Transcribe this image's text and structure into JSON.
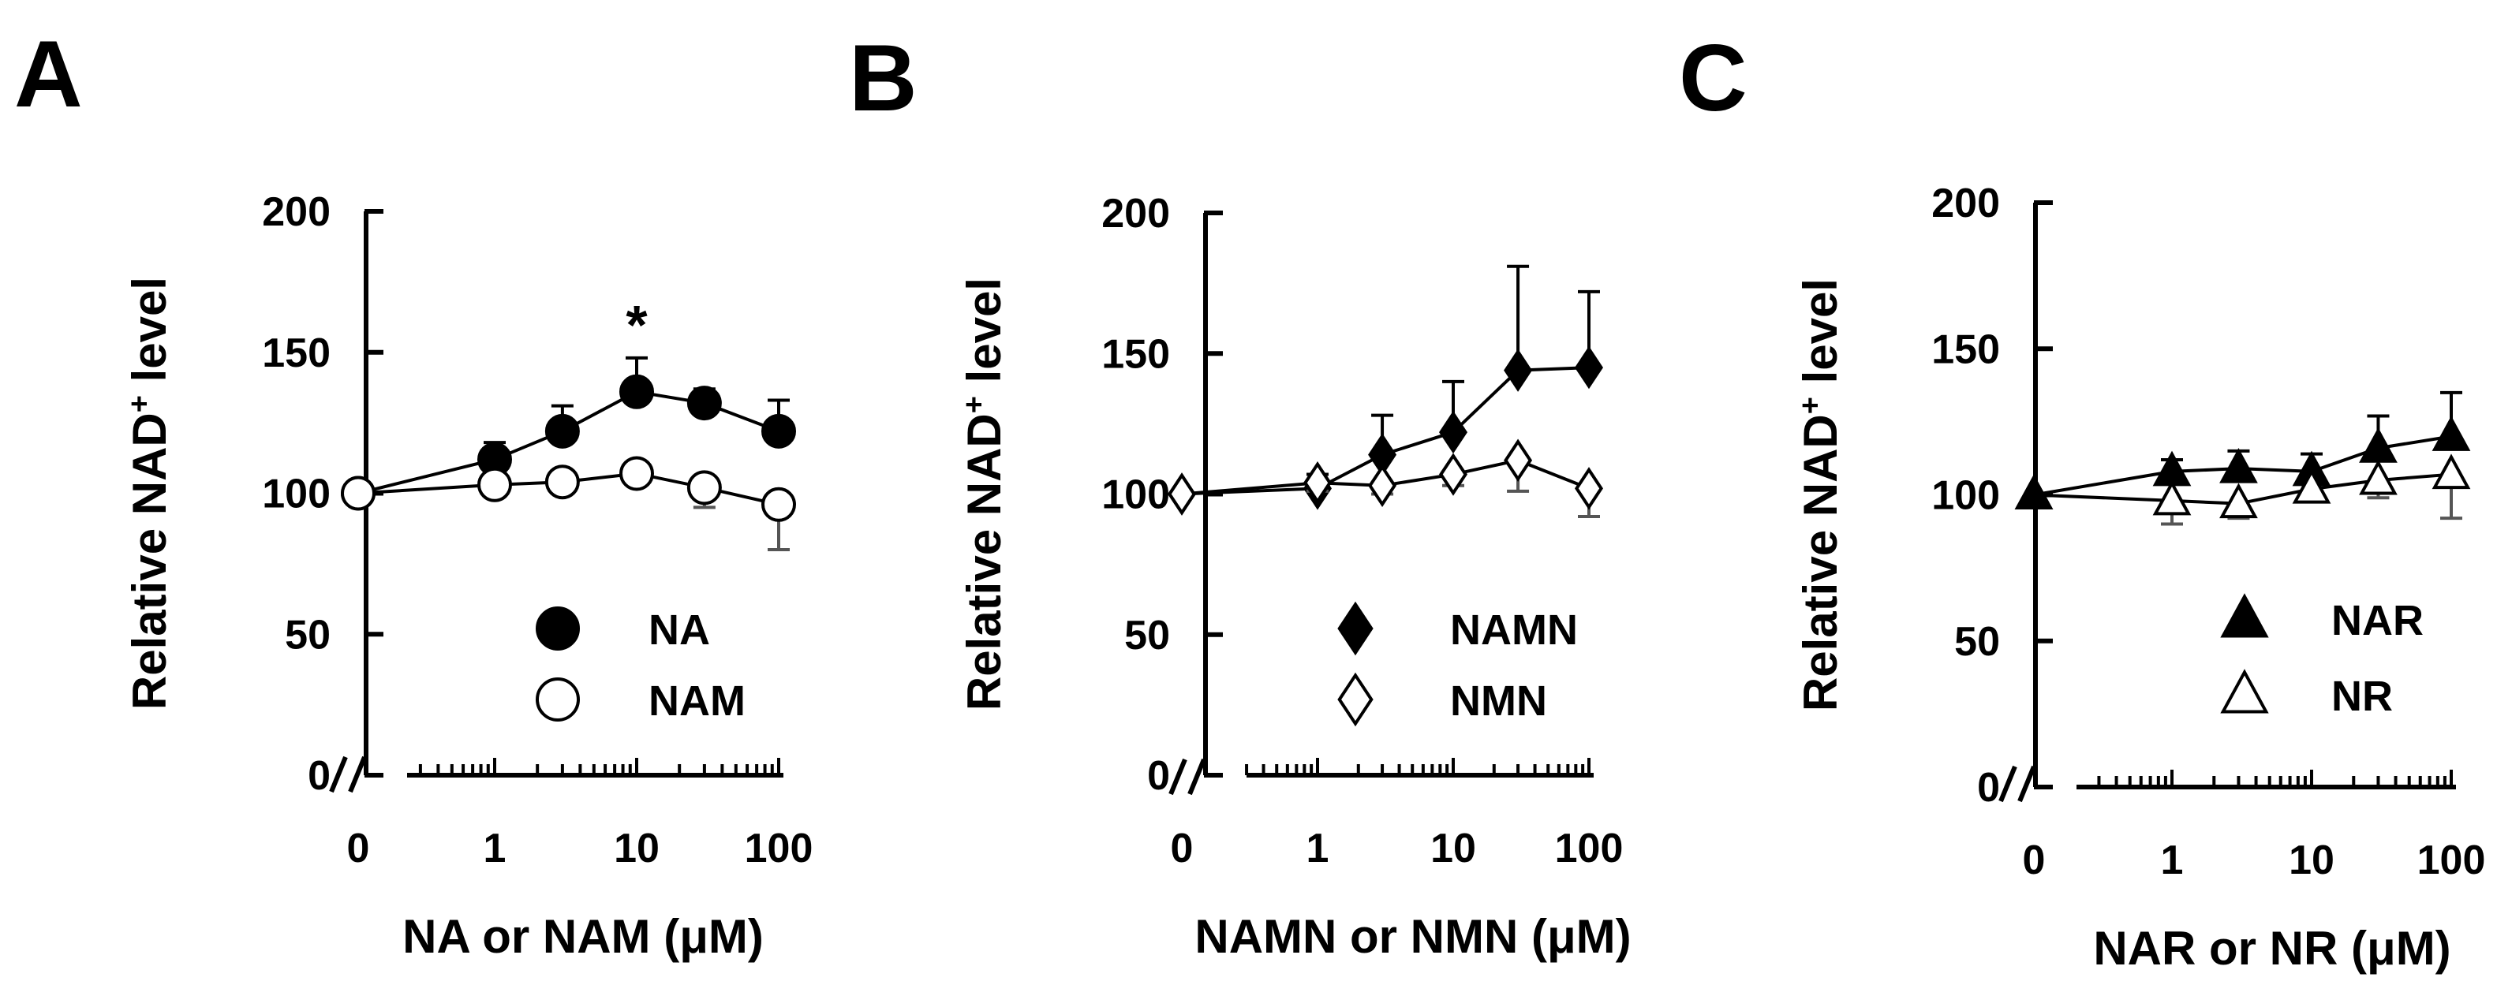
{
  "chart_data": [
    {
      "type": "line",
      "panel_label": "A",
      "ylabel_prefix": "Relative NAD",
      "ylabel_sup": "+",
      "ylabel_suffix": " level",
      "xlabel": "NA or NAM (μM)",
      "ylim": [
        0,
        200
      ],
      "yticks": [
        "0",
        "50",
        "100",
        "150",
        "200"
      ],
      "xticks": [
        "0",
        "1",
        "10",
        "100"
      ],
      "x_scale": "log (broken axis at 0)",
      "annotations": [
        {
          "text": "*",
          "x": 10
        }
      ],
      "series": [
        {
          "name": "NA",
          "marker": "filled-circle",
          "x": [
            0,
            1,
            3,
            10,
            30,
            100
          ],
          "y": [
            100,
            112,
            122,
            136,
            132,
            122
          ],
          "err": [
            0,
            6,
            9,
            12,
            5,
            11
          ]
        },
        {
          "name": "NAM",
          "marker": "open-circle",
          "x": [
            0,
            1,
            3,
            10,
            30,
            100
          ],
          "y": [
            100,
            103,
            104,
            107,
            102,
            96
          ],
          "err": [
            0,
            3,
            3,
            4,
            7,
            16
          ]
        }
      ]
    },
    {
      "type": "line",
      "panel_label": "B",
      "ylabel_prefix": "Relative NAD",
      "ylabel_sup": "+",
      "ylabel_suffix": " level",
      "xlabel": "NAMN or NMN (μM)",
      "ylim": [
        0,
        200
      ],
      "yticks": [
        "0",
        "50",
        "100",
        "150",
        "200"
      ],
      "xticks": [
        "0",
        "1",
        "10",
        "100"
      ],
      "x_scale": "log (broken axis at 0)",
      "series": [
        {
          "name": "NAMN",
          "marker": "filled-diamond",
          "x": [
            0,
            1,
            3,
            10,
            30,
            100
          ],
          "y": [
            100,
            102,
            114,
            122,
            144,
            145
          ],
          "err": [
            0,
            5,
            14,
            18,
            37,
            27
          ]
        },
        {
          "name": "NMN",
          "marker": "open-diamond",
          "x": [
            0,
            1,
            3,
            10,
            30,
            100
          ],
          "y": [
            100,
            104,
            103,
            107,
            112,
            102
          ],
          "err": [
            0,
            3,
            3,
            4,
            11,
            10
          ]
        }
      ]
    },
    {
      "type": "line",
      "panel_label": "C",
      "ylabel_prefix": "Relative NAD",
      "ylabel_sup": "+",
      "ylabel_suffix": " level",
      "xlabel": "NAR or NR (μM)",
      "ylim": [
        0,
        200
      ],
      "yticks": [
        "0",
        "50",
        "100",
        "150",
        "200"
      ],
      "xticks": [
        "0",
        "1",
        "10",
        "100"
      ],
      "x_scale": "log (broken axis at 0)",
      "series": [
        {
          "name": "NAR",
          "marker": "filled-triangle",
          "x": [
            0,
            1,
            3,
            10,
            30,
            100
          ],
          "y": [
            100,
            108,
            109,
            108,
            116,
            120
          ],
          "err": [
            0,
            4,
            6,
            6,
            11,
            15
          ]
        },
        {
          "name": "NR",
          "marker": "open-triangle",
          "x": [
            0,
            1,
            3,
            10,
            30,
            100
          ],
          "y": [
            100,
            98,
            97,
            102,
            105,
            107
          ],
          "err": [
            0,
            8,
            5,
            4,
            6,
            15
          ]
        }
      ]
    }
  ]
}
